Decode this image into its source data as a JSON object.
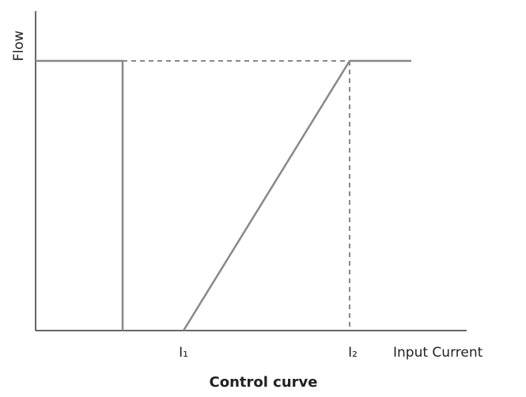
{
  "diagram": {
    "y_axis_label": "Flow",
    "x_axis_label": "Input Current",
    "x_markers": [
      "I₁",
      "I₂"
    ],
    "caption": "Control curve"
  }
}
